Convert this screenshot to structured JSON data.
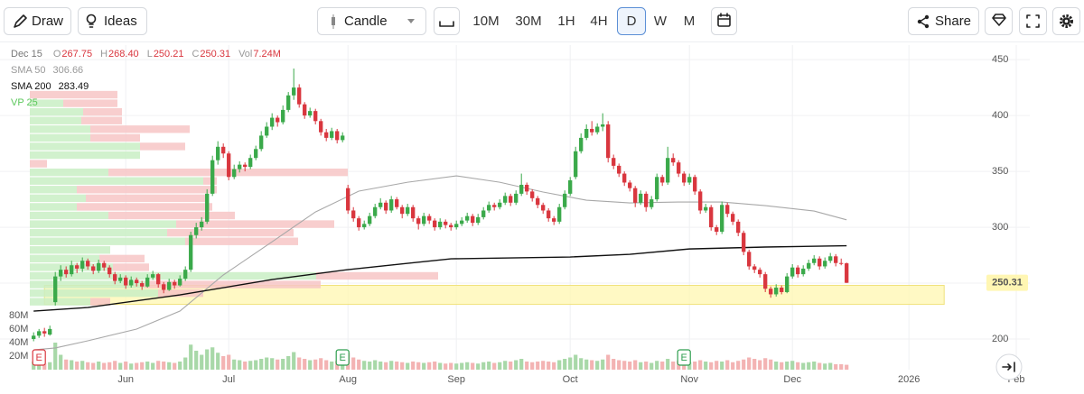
{
  "toolbar": {
    "draw": "Draw",
    "ideas": "Ideas",
    "chart_type": "Candle",
    "intervals": [
      "10M",
      "30M",
      "1H",
      "4H",
      "D",
      "W",
      "M"
    ],
    "active_interval": 4,
    "share": "Share"
  },
  "chart_data": {
    "type": "candlestick",
    "legend": {
      "date": "Dec 15",
      "fields": [
        {
          "key": "O",
          "value": "267.75"
        },
        {
          "key": "H",
          "value": "268.40"
        },
        {
          "key": "L",
          "value": "250.21"
        },
        {
          "key": "C",
          "value": "250.31"
        },
        {
          "key": "Vol",
          "value": "7.24M"
        }
      ]
    },
    "up_color": "#3aa94a",
    "down_color": "#d9363e",
    "open": [
      200,
      203,
      207,
      204,
      233,
      256,
      262,
      258,
      266,
      263,
      270,
      265,
      261,
      268,
      264,
      258,
      252,
      255,
      248,
      253,
      250,
      247,
      255,
      258,
      249,
      244,
      251,
      248,
      254,
      262,
      293,
      300,
      305,
      330,
      360,
      372,
      366,
      345,
      352,
      356,
      354,
      362,
      370,
      382,
      390,
      398,
      394,
      405,
      418,
      425,
      410,
      400,
      404,
      395,
      385,
      380,
      386,
      378,
      335,
      315,
      308,
      300,
      303,
      310,
      318,
      322,
      315,
      325,
      318,
      312,
      318,
      308,
      303,
      310,
      306,
      300,
      305,
      302,
      300,
      303,
      306,
      310,
      304,
      309,
      315,
      320,
      318,
      322,
      328,
      322,
      330,
      338,
      332,
      326,
      320,
      315,
      308,
      305,
      318,
      330,
      345,
      368,
      380,
      388,
      385,
      390,
      392,
      362,
      355,
      348,
      340,
      335,
      322,
      330,
      318,
      325,
      345,
      340,
      362,
      358,
      348,
      340,
      345,
      332,
      315,
      318,
      300,
      296,
      320,
      312,
      305,
      295,
      278,
      265,
      262,
      258,
      245,
      240,
      246,
      242,
      256,
      264,
      258,
      263,
      268,
      272,
      265,
      270,
      274,
      268,
      267.75
    ],
    "high": [
      206,
      209,
      210,
      212,
      260,
      266,
      265,
      270,
      268,
      273,
      272,
      267,
      271,
      270,
      266,
      260,
      258,
      257,
      256,
      255,
      252,
      258,
      261,
      259,
      251,
      254,
      253,
      257,
      265,
      296,
      304,
      309,
      334,
      364,
      377,
      375,
      368,
      356,
      359,
      358,
      365,
      373,
      386,
      394,
      402,
      400,
      409,
      421,
      442,
      428,
      412,
      407,
      406,
      397,
      388,
      389,
      388,
      385,
      338,
      318,
      310,
      306,
      313,
      321,
      326,
      324,
      328,
      327,
      320,
      321,
      320,
      310,
      313,
      312,
      308,
      308,
      307,
      304,
      306,
      309,
      313,
      312,
      312,
      318,
      323,
      322,
      325,
      331,
      330,
      333,
      348,
      340,
      334,
      328,
      322,
      317,
      310,
      321,
      333,
      345,
      372,
      384,
      392,
      395,
      393,
      402,
      395,
      365,
      357,
      350,
      342,
      337,
      333,
      332,
      328,
      348,
      347,
      372,
      366,
      360,
      350,
      348,
      347,
      334,
      321,
      320,
      302,
      323,
      322,
      314,
      307,
      297,
      280,
      267,
      264,
      260,
      247,
      249,
      248,
      259,
      267,
      266,
      266,
      271,
      275,
      274,
      273,
      277,
      276,
      272,
      268.4
    ],
    "low": [
      198,
      201,
      202,
      203,
      230,
      252,
      255,
      256,
      259,
      260,
      262,
      258,
      259,
      261,
      255,
      249,
      250,
      245,
      246,
      247,
      244,
      246,
      253,
      246,
      241,
      243,
      245,
      247,
      252,
      260,
      290,
      297,
      303,
      328,
      356,
      362,
      342,
      343,
      349,
      350,
      352,
      360,
      368,
      380,
      387,
      390,
      392,
      403,
      414,
      407,
      397,
      398,
      392,
      382,
      377,
      378,
      375,
      376,
      312,
      305,
      297,
      298,
      301,
      308,
      316,
      312,
      313,
      316,
      308,
      310,
      305,
      298,
      301,
      303,
      297,
      298,
      299,
      297,
      298,
      301,
      304,
      301,
      302,
      307,
      313,
      315,
      316,
      320,
      319,
      320,
      328,
      329,
      323,
      317,
      312,
      305,
      302,
      303,
      316,
      328,
      343,
      366,
      378,
      382,
      383,
      386,
      358,
      352,
      345,
      337,
      332,
      318,
      320,
      314,
      316,
      323,
      337,
      338,
      355,
      345,
      337,
      338,
      329,
      312,
      313,
      297,
      293,
      294,
      309,
      302,
      292,
      275,
      262,
      259,
      255,
      242,
      237,
      238,
      240,
      241,
      254,
      255,
      256,
      261,
      266,
      262,
      263,
      268,
      265,
      266,
      250.21
    ],
    "close": [
      203,
      207,
      205,
      209,
      256,
      262,
      258,
      266,
      263,
      270,
      265,
      261,
      268,
      264,
      258,
      252,
      255,
      248,
      253,
      250,
      247,
      255,
      258,
      249,
      244,
      251,
      248,
      254,
      262,
      293,
      300,
      305,
      330,
      360,
      372,
      366,
      345,
      352,
      356,
      354,
      362,
      370,
      382,
      390,
      398,
      394,
      405,
      418,
      425,
      410,
      400,
      404,
      395,
      385,
      380,
      386,
      378,
      382,
      315,
      308,
      300,
      303,
      310,
      318,
      322,
      315,
      325,
      318,
      312,
      318,
      308,
      303,
      310,
      306,
      300,
      305,
      302,
      300,
      303,
      306,
      310,
      304,
      309,
      315,
      320,
      318,
      322,
      328,
      322,
      330,
      338,
      332,
      326,
      320,
      315,
      308,
      305,
      318,
      330,
      342,
      368,
      380,
      388,
      385,
      390,
      392,
      362,
      355,
      348,
      340,
      335,
      322,
      330,
      318,
      325,
      345,
      340,
      362,
      358,
      348,
      340,
      345,
      332,
      315,
      318,
      300,
      296,
      320,
      312,
      305,
      295,
      278,
      265,
      262,
      258,
      245,
      240,
      246,
      242,
      256,
      264,
      258,
      263,
      268,
      272,
      265,
      270,
      274,
      268,
      267.5,
      250.31
    ],
    "volume": [
      12,
      10,
      9,
      11,
      40,
      22,
      15,
      14,
      12,
      13,
      11,
      10,
      12,
      10,
      11,
      13,
      10,
      12,
      9,
      10,
      11,
      12,
      10,
      13,
      12,
      11,
      10,
      12,
      18,
      37,
      28,
      22,
      30,
      33,
      25,
      20,
      22,
      15,
      14,
      12,
      13,
      14,
      16,
      18,
      17,
      15,
      16,
      20,
      26,
      18,
      16,
      14,
      15,
      17,
      14,
      12,
      13,
      11,
      25,
      18,
      15,
      13,
      12,
      14,
      12,
      11,
      13,
      12,
      11,
      10,
      12,
      11,
      10,
      11,
      12,
      10,
      9,
      10,
      9,
      10,
      11,
      10,
      9,
      11,
      12,
      10,
      11,
      13,
      12,
      14,
      16,
      12,
      11,
      12,
      13,
      12,
      11,
      14,
      16,
      18,
      22,
      17,
      15,
      14,
      13,
      15,
      22,
      16,
      14,
      13,
      12,
      14,
      11,
      12,
      10,
      13,
      12,
      16,
      12,
      13,
      12,
      11,
      12,
      14,
      12,
      11,
      13,
      12,
      14,
      11,
      13,
      15,
      18,
      16,
      14,
      17,
      15,
      12,
      11,
      12,
      13,
      11,
      10,
      11,
      12,
      10,
      9,
      10,
      8,
      8,
      7.24
    ],
    "volume_up_color": "#a8d8a8",
    "volume_down_color": "#f3b3b3",
    "series": [
      {
        "name": "SMA 50",
        "color": "#a8a8a8",
        "last": "306.66",
        "x": [
          0,
          4,
          10,
          19,
          27,
          35,
          44,
          52,
          60,
          69,
          78,
          86,
          94,
          102,
          110,
          119,
          127,
          135,
          144,
          150
        ],
        "values": [
          190.3,
          192,
          198.4,
          208.9,
          225,
          257.3,
          287,
          313.7,
          332.3,
          340.3,
          346,
          340.3,
          331.5,
          324.2,
          321.8,
          322.6,
          322.6,
          319.4,
          314.5,
          306.66
        ]
      },
      {
        "name": "SMA 200",
        "color": "#111111",
        "last": "283.49",
        "x": [
          0,
          10,
          27,
          44,
          58,
          69,
          77,
          99,
          110,
          121,
          135,
          150
        ],
        "values": [
          225,
          228.2,
          239.5,
          253.2,
          262.1,
          267.7,
          271.8,
          273.4,
          275.8,
          280.6,
          282.3,
          283.49
        ]
      }
    ],
    "volume_profile": {
      "name": "VP 25",
      "low": 229,
      "high": 422,
      "up": [
        67,
        142,
        127,
        317,
        92,
        77,
        89,
        172,
        152,
        162,
        87,
        52,
        62,
        52,
        192,
        87,
        0,
        122,
        122,
        67,
        67,
        57,
        59,
        37,
        0
      ],
      "down": [
        22,
        50,
        195,
        135,
        40,
        50,
        0,
        125,
        140,
        175,
        140,
        150,
        135,
        155,
        15,
        265,
        19,
        0,
        50,
        55,
        110,
        45,
        43,
        60,
        97
      ],
      "up_color": "#c9efc4",
      "down_color": "#f7c6c6",
      "name_color": "#5cc85c"
    },
    "zone": {
      "low": 231,
      "high": 248,
      "from": 2,
      "to": 168,
      "color": "#fff7b0"
    },
    "last_price": {
      "value": 250.31,
      "label": "250.31"
    },
    "events": [
      {
        "x": 1,
        "label": "E",
        "color": "#d9363e"
      },
      {
        "x": 57,
        "label": "E",
        "color": "#2e9e4f"
      },
      {
        "x": 120,
        "label": "E",
        "color": "#2e9e4f"
      }
    ],
    "xlim": [
      -6.2,
      183.8
    ],
    "xticks": [
      {
        "value": 17,
        "label": "Jun"
      },
      {
        "value": 36,
        "label": "Jul"
      },
      {
        "value": 58,
        "label": "Aug"
      },
      {
        "value": 78,
        "label": "Sep"
      },
      {
        "value": 99,
        "label": "Oct"
      },
      {
        "value": 121,
        "label": "Nov"
      },
      {
        "value": 140,
        "label": "Dec"
      },
      {
        "value": 161.5,
        "label": "2026"
      },
      {
        "value": 181.3,
        "label": "Feb"
      }
    ],
    "ylim": [
      172.6,
      463
    ],
    "yticks": [
      200,
      250,
      300,
      350,
      400,
      450
    ],
    "y2lim": [
      0,
      480
    ],
    "y2ticks": [
      {
        "value": 20,
        "label": "20M"
      },
      {
        "value": 40,
        "label": "40M"
      },
      {
        "value": 60,
        "label": "60M"
      },
      {
        "value": 80,
        "label": "80M"
      }
    ],
    "grid": true
  }
}
